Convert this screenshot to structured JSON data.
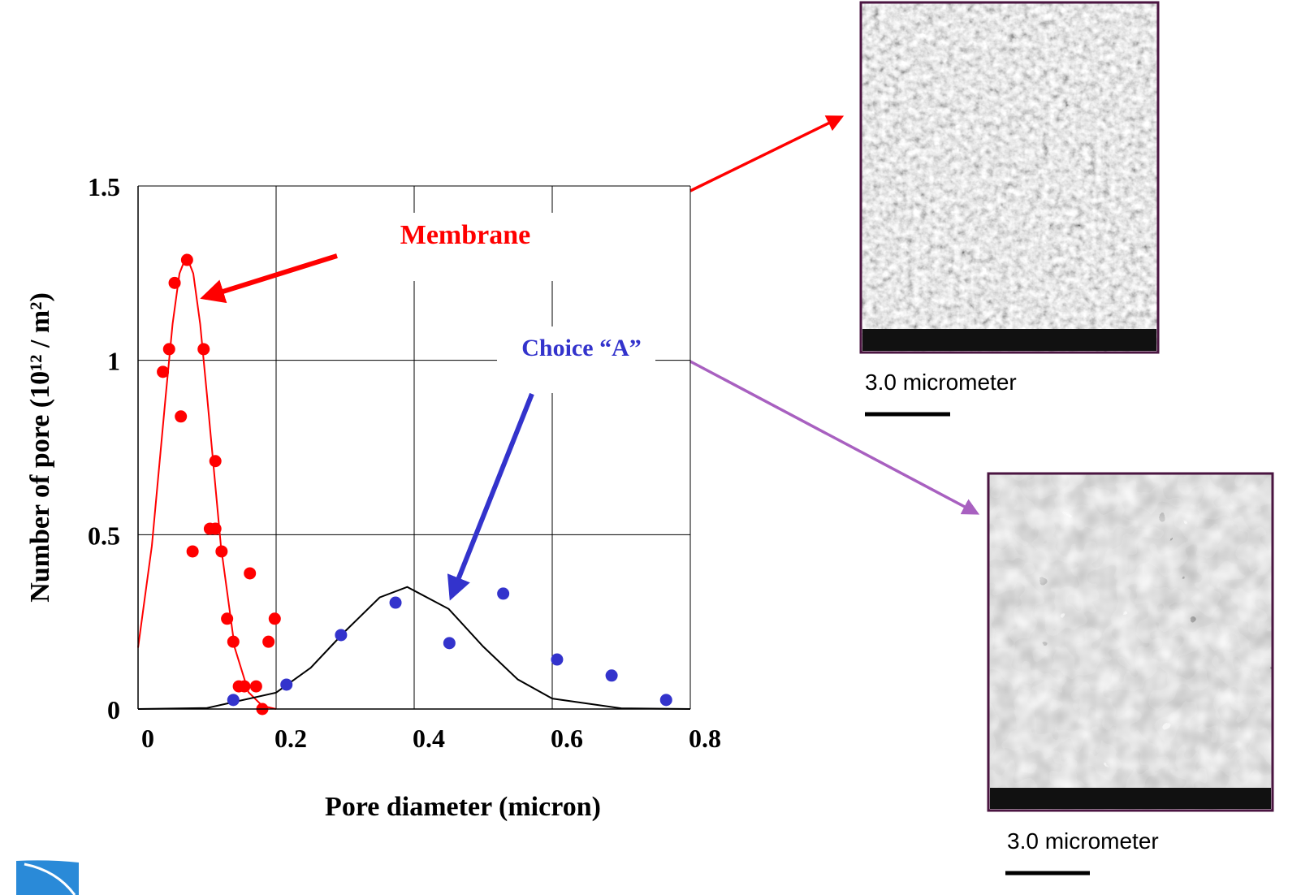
{
  "chart_data": {
    "type": "scatter",
    "xlabel": "Pore diameter (micron)",
    "ylabel": "Number of pore (10¹² / m²)",
    "xlim": [
      0,
      0.8
    ],
    "ylim": [
      0,
      1.5
    ],
    "xticks": [
      0,
      0.2,
      0.4,
      0.6,
      0.8
    ],
    "yticks": [
      0,
      0.5,
      1,
      1.5
    ],
    "grid": true,
    "series": [
      {
        "type": "points",
        "color": "#ff0000",
        "x": [
          0.036,
          0.045,
          0.053,
          0.062,
          0.071,
          0.079,
          0.095,
          0.104,
          0.112,
          0.112,
          0.121,
          0.129,
          0.138,
          0.146,
          0.154,
          0.162,
          0.171,
          0.18,
          0.189,
          0.198
        ],
        "values": [
          0.967,
          1.032,
          1.222,
          0.839,
          1.288,
          0.452,
          1.032,
          0.517,
          0.711,
          0.517,
          0.452,
          0.259,
          0.193,
          0.065,
          0.065,
          0.389,
          0.065,
          0,
          0.193,
          0.259
        ]
      },
      {
        "type": "points",
        "color": "#3333cc",
        "x": [
          0.138,
          0.215,
          0.294,
          0.373,
          0.451,
          0.529,
          0.607,
          0.686,
          0.765
        ],
        "values": [
          0.026,
          0.07,
          0.212,
          0.305,
          0.189,
          0.331,
          0.142,
          0.096,
          0.026
        ]
      },
      {
        "type": "curve",
        "color": "#ff0000",
        "x": [
          0,
          0.02,
          0.04,
          0.05,
          0.06,
          0.07,
          0.08,
          0.09,
          0.1,
          0.12,
          0.14,
          0.16,
          0.18,
          0.2
        ],
        "values": [
          0.176,
          0.468,
          0.897,
          1.104,
          1.249,
          1.3,
          1.249,
          1.104,
          0.897,
          0.468,
          0.176,
          0.048,
          0.009,
          0
        ]
      },
      {
        "type": "curve",
        "color": "#000000",
        "x": [
          0,
          0.1,
          0.2,
          0.25,
          0.3,
          0.35,
          0.39,
          0.45,
          0.5,
          0.55,
          0.6,
          0.7,
          0.8
        ],
        "values": [
          0,
          0.003,
          0.047,
          0.118,
          0.223,
          0.32,
          0.35,
          0.287,
          0.179,
          0.085,
          0.03,
          0.002,
          0
        ]
      }
    ],
    "annotations": [
      {
        "text": "Membrane",
        "color": "#ff0000"
      },
      {
        "text": "Choice “A”",
        "color": "#3333cc"
      }
    ]
  },
  "images": [
    {
      "caption": "3.0 micrometer"
    },
    {
      "caption": "3.0 micrometer"
    }
  ]
}
